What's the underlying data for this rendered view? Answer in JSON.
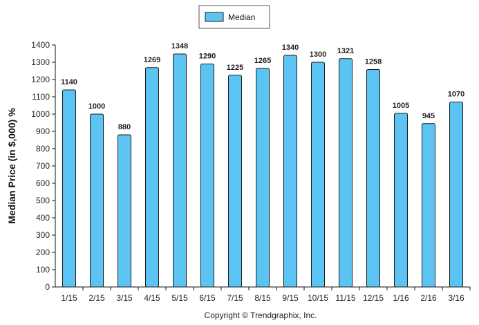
{
  "chart_data": {
    "type": "bar",
    "categories": [
      "1/15",
      "2/15",
      "3/15",
      "4/15",
      "5/15",
      "6/15",
      "7/15",
      "8/15",
      "9/15",
      "10/15",
      "11/15",
      "12/15",
      "1/16",
      "2/16",
      "3/16"
    ],
    "series": [
      {
        "name": "Median",
        "values": [
          1140,
          1000,
          880,
          1269,
          1348,
          1290,
          1225,
          1265,
          1340,
          1300,
          1321,
          1258,
          1005,
          945,
          1070
        ],
        "data_labels": [
          "1140",
          "1000",
          "880",
          "1269",
          "1348",
          "1290",
          "1225",
          "1265",
          "1340",
          "1300",
          "1321",
          "1258",
          "1005",
          "945",
          "1070"
        ]
      }
    ],
    "ylabel": "Median Price (in $,000) %",
    "xlabel": "",
    "ylim": [
      0,
      1400
    ],
    "y_ticks": [
      0,
      100,
      200,
      300,
      400,
      500,
      600,
      700,
      800,
      900,
      1000,
      1100,
      1200,
      1300,
      1400
    ],
    "grid": false,
    "legend_position": "top-center",
    "colors": {
      "bar_fill": "#5cc4f2",
      "bar_stroke": "#1a1a1a"
    }
  },
  "footer": {
    "copyright": "Copyright © Trendgraphix, Inc."
  }
}
